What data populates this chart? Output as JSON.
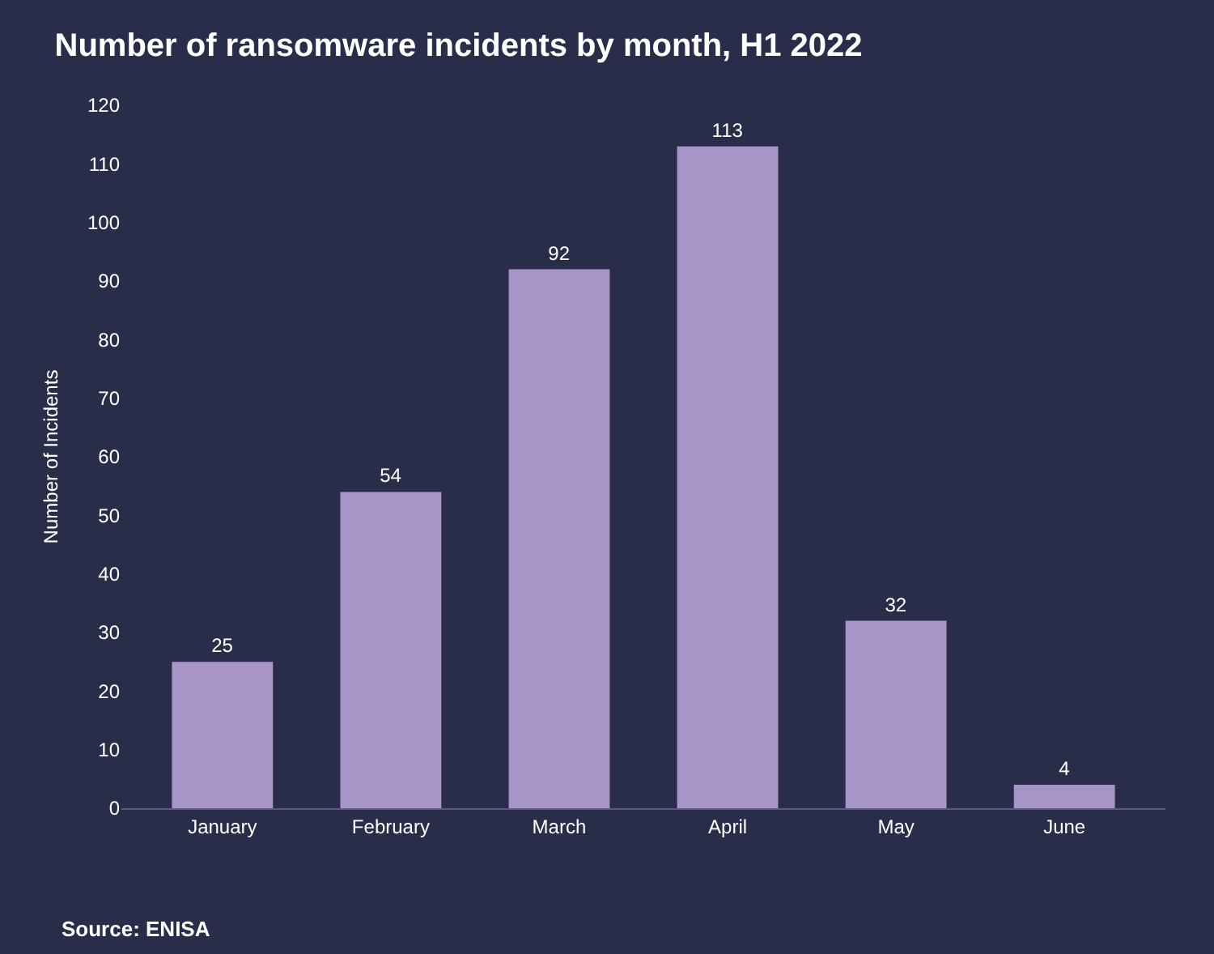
{
  "chart_data": {
    "type": "bar",
    "title": "Number of ransomware incidents by month, H1 2022",
    "ylabel": "Number of Incidents",
    "categories": [
      "January",
      "February",
      "March",
      "April",
      "May",
      "June"
    ],
    "values": [
      25,
      54,
      92,
      113,
      32,
      4
    ],
    "color": "#a994c8",
    "ylim": [
      0,
      120
    ],
    "yticks": [
      0,
      10,
      20,
      30,
      40,
      50,
      60,
      70,
      80,
      90,
      100,
      110,
      120
    ],
    "data_labels": true,
    "grid": false,
    "legend": false,
    "annotations": [
      "Source: ENISA"
    ]
  }
}
